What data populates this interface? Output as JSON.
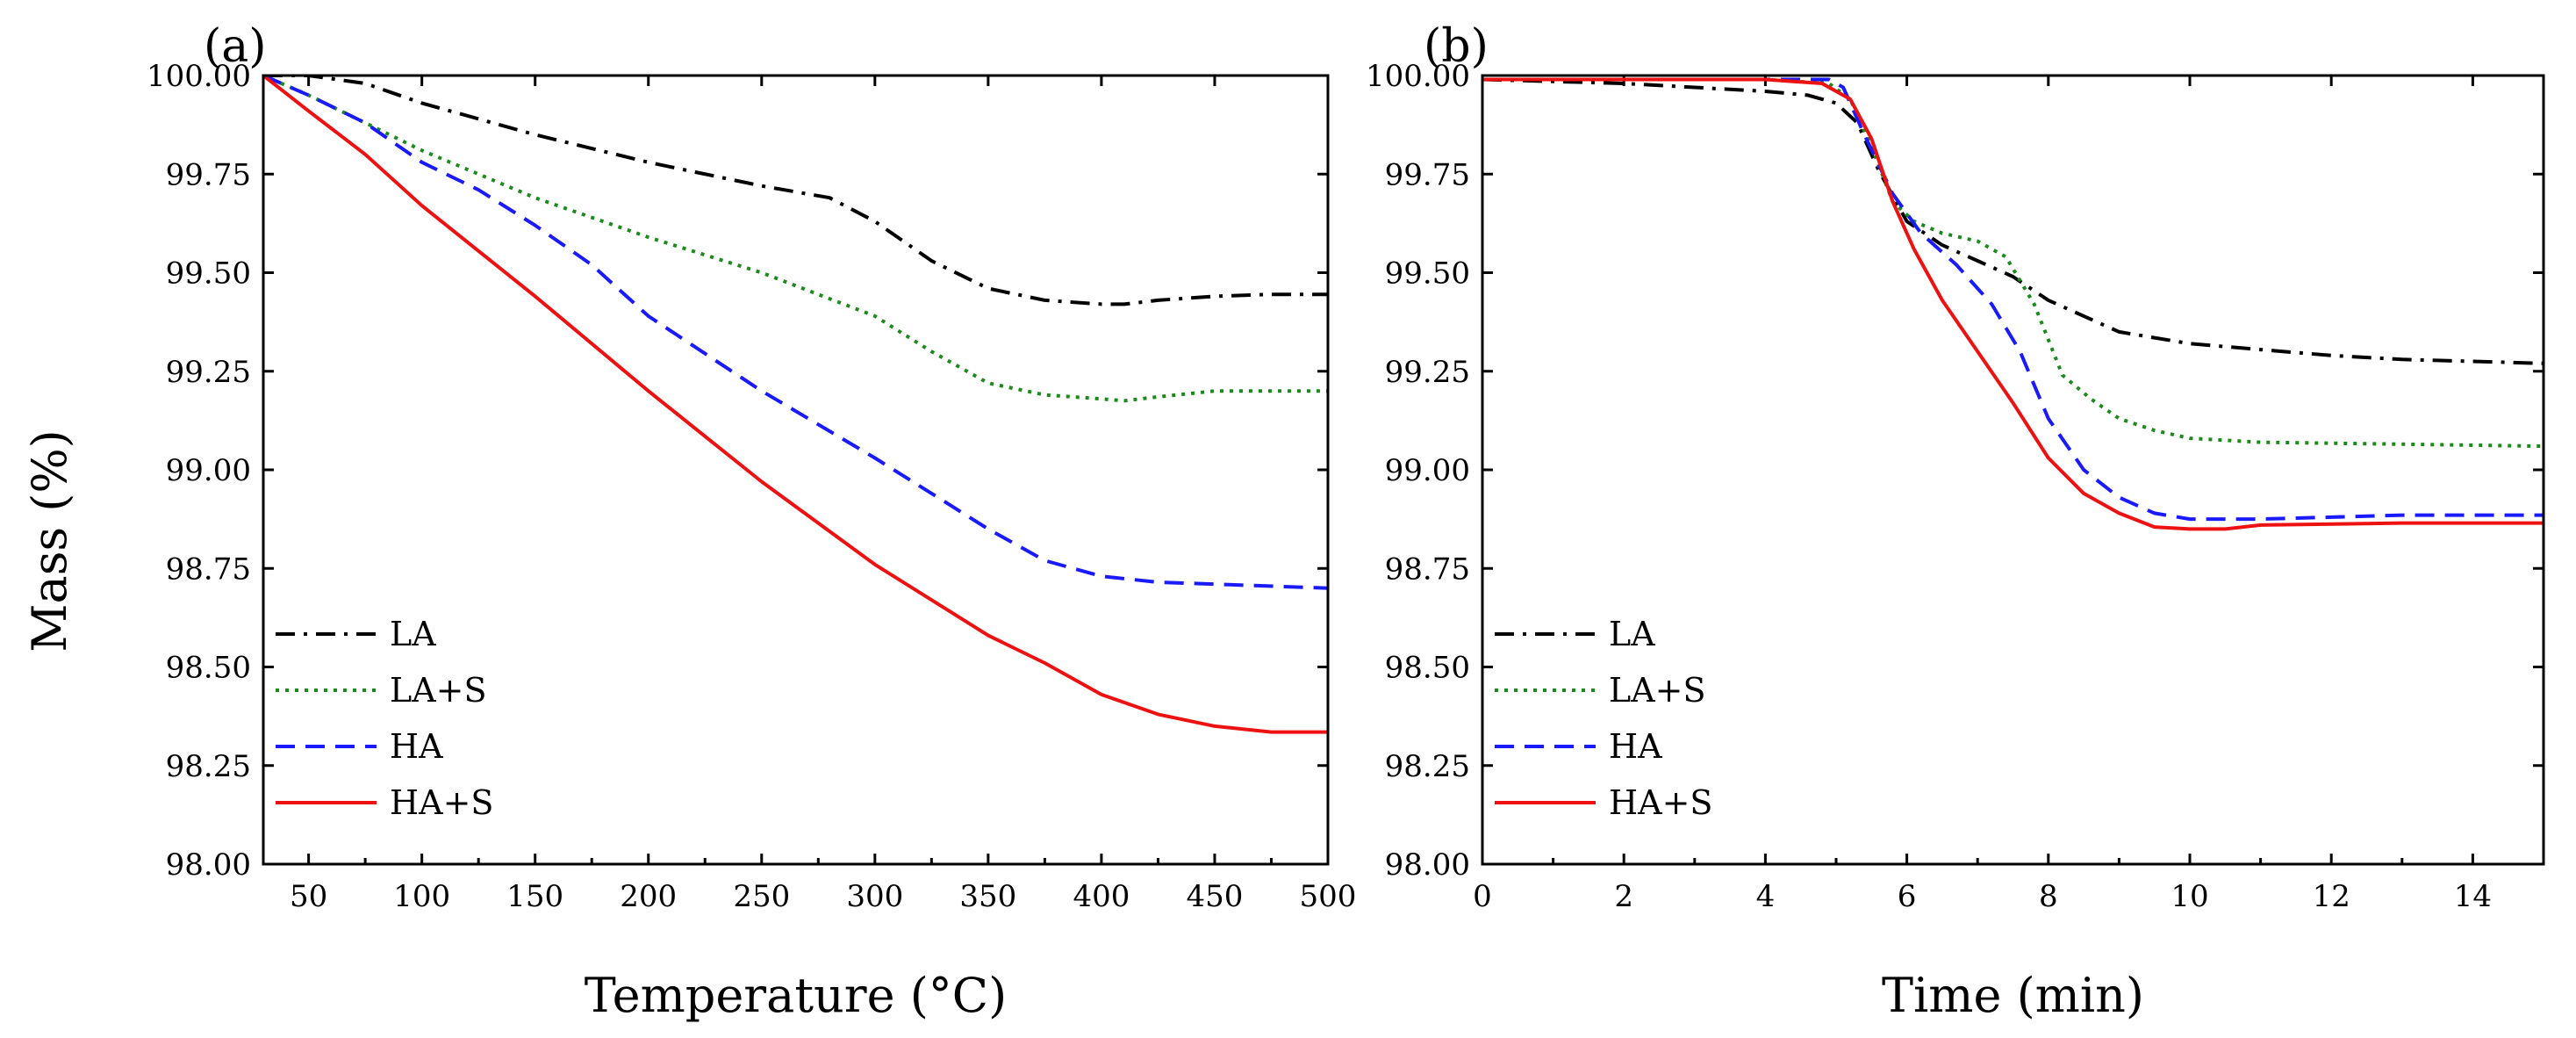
{
  "chart_data": [
    {
      "panel_label": "(a)",
      "type": "line",
      "title": "",
      "xlabel": "Temperature (°C)",
      "ylabel": "Mass (%)",
      "xlim": [
        30,
        500
      ],
      "ylim": [
        98.0,
        100.0
      ],
      "xticks": [
        50,
        100,
        150,
        200,
        250,
        300,
        350,
        400,
        450,
        500
      ],
      "yticks": [
        98.0,
        98.25,
        98.5,
        98.75,
        99.0,
        99.25,
        99.5,
        99.75,
        100.0
      ],
      "xtick_labels": [
        "50",
        "100",
        "150",
        "200",
        "250",
        "300",
        "350",
        "400",
        "450",
        "500"
      ],
      "ytick_labels": [
        "98.00",
        "98.25",
        "98.50",
        "98.75",
        "99.00",
        "99.25",
        "99.50",
        "99.75",
        "100.00"
      ],
      "grid": false,
      "legend_position": "bottom-left",
      "series": [
        {
          "name": "LA",
          "color": "#000000",
          "dash": "dashdot",
          "x": [
            30,
            50,
            75,
            100,
            150,
            200,
            250,
            280,
            300,
            325,
            350,
            375,
            400,
            410,
            425,
            450,
            475,
            500
          ],
          "y": [
            100.0,
            100.0,
            99.98,
            99.93,
            99.85,
            99.78,
            99.72,
            99.69,
            99.63,
            99.53,
            99.46,
            99.43,
            99.42,
            99.42,
            99.43,
            99.44,
            99.445,
            99.445
          ]
        },
        {
          "name": "LA+S",
          "color": "#1a8a1a",
          "dash": "dotted",
          "x": [
            30,
            50,
            75,
            100,
            150,
            200,
            250,
            300,
            325,
            350,
            375,
            400,
            410,
            425,
            450,
            500
          ],
          "y": [
            100.0,
            99.95,
            99.88,
            99.81,
            99.69,
            99.59,
            99.5,
            99.39,
            99.3,
            99.22,
            99.19,
            99.18,
            99.175,
            99.185,
            99.2,
            99.2
          ]
        },
        {
          "name": "HA",
          "color": "#1a1aff",
          "dash": "dashed",
          "x": [
            30,
            50,
            75,
            100,
            125,
            150,
            175,
            200,
            250,
            300,
            325,
            350,
            375,
            400,
            425,
            450,
            500
          ],
          "y": [
            100.0,
            99.95,
            99.88,
            99.78,
            99.71,
            99.62,
            99.52,
            99.39,
            99.2,
            99.03,
            98.94,
            98.85,
            98.77,
            98.73,
            98.715,
            98.71,
            98.7
          ]
        },
        {
          "name": "HA+S",
          "color": "#ee1111",
          "dash": "solid",
          "x": [
            30,
            50,
            75,
            100,
            150,
            200,
            250,
            300,
            350,
            375,
            400,
            425,
            450,
            475,
            500
          ],
          "y": [
            100.0,
            99.91,
            99.8,
            99.67,
            99.44,
            99.2,
            98.97,
            98.76,
            98.58,
            98.51,
            98.43,
            98.38,
            98.35,
            98.335,
            98.335
          ]
        }
      ]
    },
    {
      "panel_label": "(b)",
      "type": "line",
      "title": "",
      "xlabel": "Time (min)",
      "ylabel": "Mass (%)",
      "xlim": [
        0,
        15
      ],
      "ylim": [
        98.0,
        100.0
      ],
      "xticks": [
        0,
        2,
        4,
        6,
        8,
        10,
        12,
        14
      ],
      "yticks": [
        98.0,
        98.25,
        98.5,
        98.75,
        99.0,
        99.25,
        99.5,
        99.75,
        100.0
      ],
      "xtick_labels": [
        "0",
        "2",
        "4",
        "6",
        "8",
        "10",
        "12",
        "14"
      ],
      "ytick_labels": [
        "98.00",
        "98.25",
        "98.50",
        "98.75",
        "99.00",
        "99.25",
        "99.50",
        "99.75",
        "100.00"
      ],
      "grid": false,
      "legend_position": "bottom-left",
      "series": [
        {
          "name": "LA",
          "color": "#000000",
          "dash": "dashdot",
          "x": [
            0,
            2,
            4,
            4.6,
            5.0,
            5.3,
            5.6,
            6.0,
            6.5,
            7.0,
            7.5,
            8.0,
            8.5,
            9.0,
            10.0,
            11.0,
            12.0,
            13.0,
            14.0,
            15.0
          ],
          "y": [
            99.99,
            99.98,
            99.96,
            99.95,
            99.93,
            99.88,
            99.76,
            99.63,
            99.57,
            99.53,
            99.49,
            99.43,
            99.39,
            99.35,
            99.32,
            99.305,
            99.29,
            99.28,
            99.275,
            99.27
          ]
        },
        {
          "name": "LA+S",
          "color": "#1a8a1a",
          "dash": "dotted",
          "x": [
            0,
            2,
            4,
            4.9,
            5.2,
            5.5,
            5.8,
            6.1,
            6.5,
            7.0,
            7.4,
            7.8,
            8.2,
            8.6,
            9.0,
            9.5,
            10.0,
            11.0,
            13.0,
            15.0
          ],
          "y": [
            99.99,
            99.99,
            99.99,
            99.98,
            99.94,
            99.82,
            99.68,
            99.63,
            99.6,
            99.58,
            99.54,
            99.42,
            99.24,
            99.18,
            99.13,
            99.1,
            99.08,
            99.07,
            99.065,
            99.06
          ]
        },
        {
          "name": "HA",
          "color": "#1a1aff",
          "dash": "dashed",
          "x": [
            0,
            2,
            4,
            4.9,
            5.1,
            5.4,
            5.8,
            6.2,
            6.7,
            7.2,
            7.6,
            8.0,
            8.5,
            9.0,
            9.5,
            10.0,
            11.0,
            12.0,
            13.0,
            15.0
          ],
          "y": [
            99.99,
            99.99,
            99.99,
            99.99,
            99.97,
            99.85,
            99.7,
            99.6,
            99.52,
            99.42,
            99.3,
            99.13,
            99.0,
            98.93,
            98.89,
            98.875,
            98.875,
            98.88,
            98.885,
            98.885
          ]
        },
        {
          "name": "HA+S",
          "color": "#ee1111",
          "dash": "solid",
          "x": [
            0,
            2,
            4,
            4.8,
            5.2,
            5.5,
            5.8,
            6.1,
            6.5,
            7.0,
            7.5,
            8.0,
            8.5,
            9.0,
            9.5,
            10.0,
            10.5,
            11.0,
            13.0,
            15.0
          ],
          "y": [
            99.99,
            99.99,
            99.99,
            99.98,
            99.94,
            99.84,
            99.68,
            99.56,
            99.43,
            99.3,
            99.17,
            99.03,
            98.94,
            98.89,
            98.855,
            98.85,
            98.85,
            98.86,
            98.865,
            98.865
          ]
        }
      ]
    }
  ]
}
